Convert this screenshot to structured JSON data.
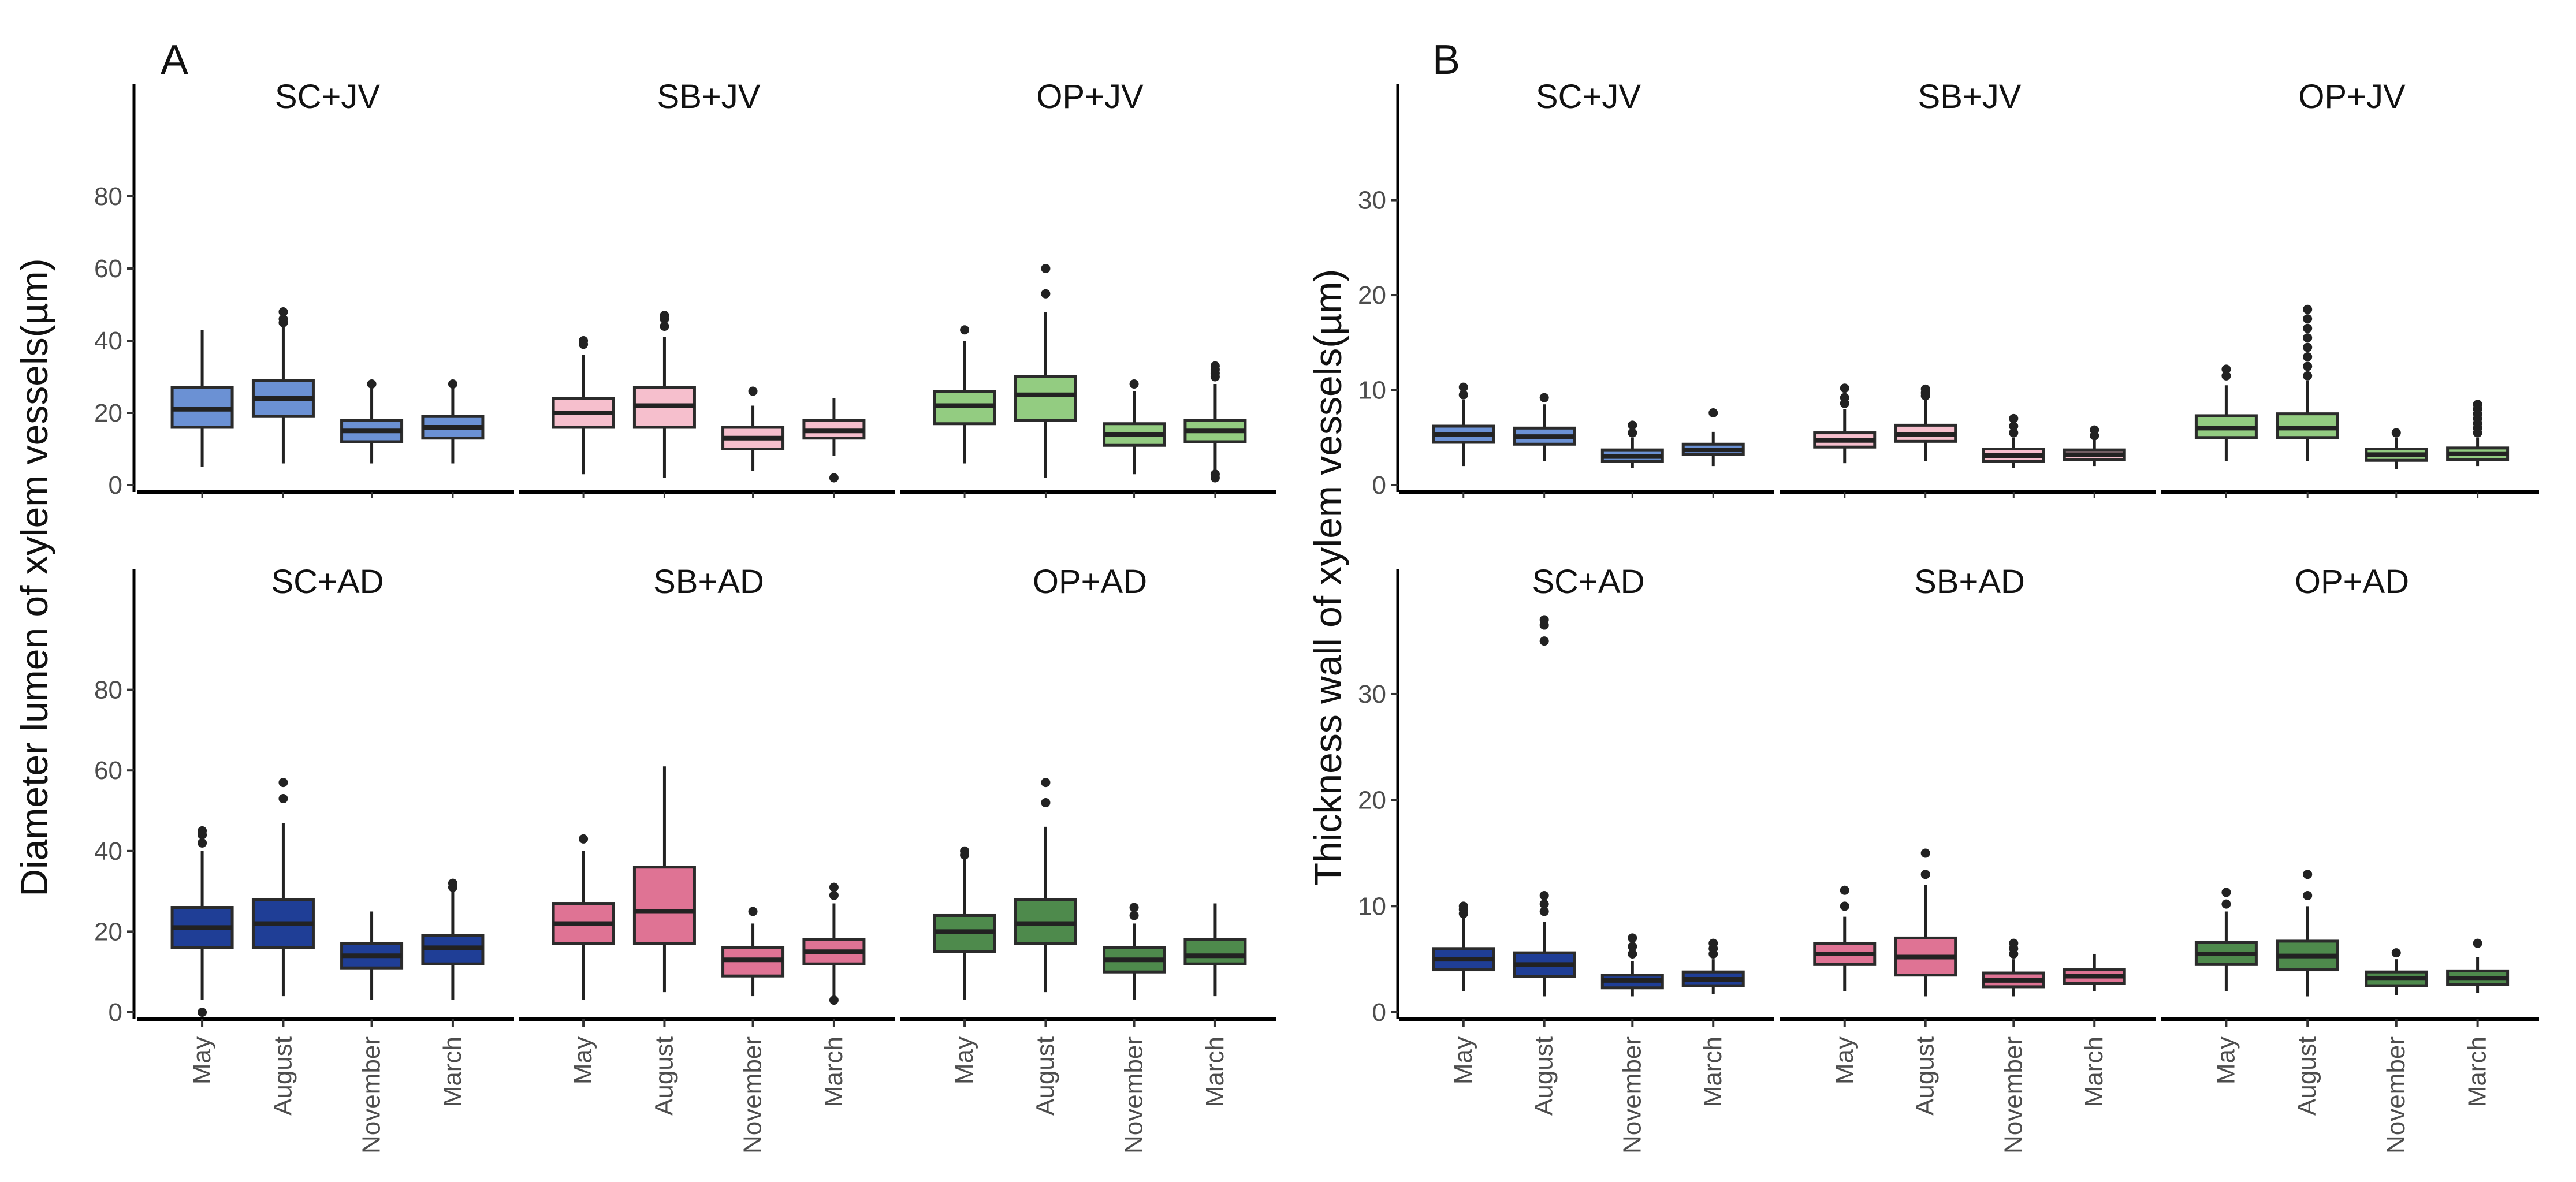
{
  "chart_data": [
    {
      "type": "boxplot",
      "panel_label": "A",
      "ylabel": "Diameter lumen of xylem vessels(µm)",
      "categories": [
        "May",
        "August",
        "November",
        "March"
      ],
      "rows": [
        {
          "ylim": [
            0,
            100
          ],
          "yticks": [
            0,
            20,
            40,
            60,
            80
          ],
          "facets": [
            {
              "title": "SC+JV",
              "color": "#6b91d4",
              "boxes": [
                {
                  "min": 5,
                  "q1": 16,
                  "median": 21,
                  "q3": 27,
                  "max": 43,
                  "outliers": []
                },
                {
                  "min": 6,
                  "q1": 19,
                  "median": 24,
                  "q3": 29,
                  "max": 44,
                  "outliers": [
                    45,
                    46,
                    48
                  ]
                },
                {
                  "min": 6,
                  "q1": 12,
                  "median": 15,
                  "q3": 18,
                  "max": 27,
                  "outliers": [
                    28
                  ]
                },
                {
                  "min": 6,
                  "q1": 13,
                  "median": 16,
                  "q3": 19,
                  "max": 27,
                  "outliers": [
                    28
                  ]
                }
              ]
            },
            {
              "title": "SB+JV",
              "color": "#f6bfcd",
              "boxes": [
                {
                  "min": 3,
                  "q1": 16,
                  "median": 20,
                  "q3": 24,
                  "max": 36,
                  "outliers": [
                    39,
                    40
                  ]
                },
                {
                  "min": 2,
                  "q1": 16,
                  "median": 22,
                  "q3": 27,
                  "max": 41,
                  "outliers": [
                    44,
                    46,
                    47
                  ]
                },
                {
                  "min": 4,
                  "q1": 10,
                  "median": 13,
                  "q3": 16,
                  "max": 22,
                  "outliers": [
                    26
                  ]
                },
                {
                  "min": 8,
                  "q1": 13,
                  "median": 15,
                  "q3": 18,
                  "max": 24,
                  "outliers": [
                    2
                  ]
                }
              ]
            },
            {
              "title": "OP+JV",
              "color": "#93cc81",
              "boxes": [
                {
                  "min": 6,
                  "q1": 17,
                  "median": 22,
                  "q3": 26,
                  "max": 40,
                  "outliers": [
                    43
                  ]
                },
                {
                  "min": 2,
                  "q1": 18,
                  "median": 25,
                  "q3": 30,
                  "max": 48,
                  "outliers": [
                    53,
                    60
                  ]
                },
                {
                  "min": 3,
                  "q1": 11,
                  "median": 14,
                  "q3": 17,
                  "max": 26,
                  "outliers": [
                    28
                  ]
                },
                {
                  "min": 4,
                  "q1": 12,
                  "median": 15,
                  "q3": 18,
                  "max": 28,
                  "outliers": [
                    2,
                    3,
                    30,
                    31,
                    32,
                    33
                  ]
                }
              ]
            }
          ]
        },
        {
          "ylim": [
            0,
            100
          ],
          "yticks": [
            0,
            20,
            40,
            60,
            80
          ],
          "facets": [
            {
              "title": "SC+AD",
              "color": "#1f3e96",
              "boxes": [
                {
                  "min": 3,
                  "q1": 16,
                  "median": 21,
                  "q3": 26,
                  "max": 40,
                  "outliers": [
                    0,
                    42,
                    44,
                    45
                  ]
                },
                {
                  "min": 4,
                  "q1": 16,
                  "median": 22,
                  "q3": 28,
                  "max": 47,
                  "outliers": [
                    53,
                    57
                  ]
                },
                {
                  "min": 3,
                  "q1": 11,
                  "median": 14,
                  "q3": 17,
                  "max": 25,
                  "outliers": []
                },
                {
                  "min": 3,
                  "q1": 12,
                  "median": 16,
                  "q3": 19,
                  "max": 30,
                  "outliers": [
                    31,
                    32
                  ]
                }
              ]
            },
            {
              "title": "SB+AD",
              "color": "#df7394",
              "boxes": [
                {
                  "min": 3,
                  "q1": 17,
                  "median": 22,
                  "q3": 27,
                  "max": 40,
                  "outliers": [
                    43
                  ]
                },
                {
                  "min": 5,
                  "q1": 17,
                  "median": 25,
                  "q3": 36,
                  "max": 61,
                  "outliers": []
                },
                {
                  "min": 4,
                  "q1": 9,
                  "median": 13,
                  "q3": 16,
                  "max": 22,
                  "outliers": [
                    25
                  ]
                },
                {
                  "min": 4,
                  "q1": 12,
                  "median": 15,
                  "q3": 18,
                  "max": 27,
                  "outliers": [
                    3,
                    29,
                    31
                  ]
                }
              ]
            },
            {
              "title": "OP+AD",
              "color": "#4e8a4c",
              "boxes": [
                {
                  "min": 3,
                  "q1": 15,
                  "median": 20,
                  "q3": 24,
                  "max": 38,
                  "outliers": [
                    39,
                    40
                  ]
                },
                {
                  "min": 5,
                  "q1": 17,
                  "median": 22,
                  "q3": 28,
                  "max": 46,
                  "outliers": [
                    52,
                    57
                  ]
                },
                {
                  "min": 3,
                  "q1": 10,
                  "median": 13,
                  "q3": 16,
                  "max": 22,
                  "outliers": [
                    24,
                    26
                  ]
                },
                {
                  "min": 4,
                  "q1": 12,
                  "median": 14,
                  "q3": 18,
                  "max": 27,
                  "outliers": []
                }
              ]
            }
          ]
        }
      ]
    },
    {
      "type": "boxplot",
      "panel_label": "B",
      "ylabel": "Thickness wall of xylem vessels(µm)",
      "categories": [
        "May",
        "August",
        "November",
        "March"
      ],
      "rows": [
        {
          "ylim": [
            0,
            38
          ],
          "yticks": [
            0,
            10,
            20,
            30
          ],
          "facets": [
            {
              "title": "SC+JV",
              "color": "#6b91d4",
              "boxes": [
                {
                  "min": 2,
                  "q1": 4.5,
                  "median": 5.3,
                  "q3": 6.2,
                  "max": 9,
                  "outliers": [
                    9.5,
                    10.3
                  ]
                },
                {
                  "min": 2.5,
                  "q1": 4.3,
                  "median": 5.1,
                  "q3": 6,
                  "max": 8.5,
                  "outliers": [
                    9.2
                  ]
                },
                {
                  "min": 1.8,
                  "q1": 2.5,
                  "median": 3,
                  "q3": 3.7,
                  "max": 5,
                  "outliers": [
                    5.5,
                    6.3
                  ]
                },
                {
                  "min": 2,
                  "q1": 3.2,
                  "median": 3.7,
                  "q3": 4.3,
                  "max": 5.6,
                  "outliers": [
                    7.6
                  ]
                }
              ]
            },
            {
              "title": "SB+JV",
              "color": "#f6bfcd",
              "boxes": [
                {
                  "min": 2.3,
                  "q1": 4,
                  "median": 4.7,
                  "q3": 5.5,
                  "max": 8,
                  "outliers": [
                    8.6,
                    9.2,
                    10.2
                  ]
                },
                {
                  "min": 2.5,
                  "q1": 4.6,
                  "median": 5.3,
                  "q3": 6.3,
                  "max": 9,
                  "outliers": [
                    9.4,
                    9.7,
                    10.1
                  ]
                },
                {
                  "min": 1.8,
                  "q1": 2.5,
                  "median": 3.1,
                  "q3": 3.8,
                  "max": 5,
                  "outliers": [
                    5.5,
                    6.2,
                    7
                  ]
                },
                {
                  "min": 2,
                  "q1": 2.7,
                  "median": 3.2,
                  "q3": 3.7,
                  "max": 4.8,
                  "outliers": [
                    5.2,
                    5.8
                  ]
                }
              ]
            },
            {
              "title": "OP+JV",
              "color": "#93cc81",
              "boxes": [
                {
                  "min": 2.5,
                  "q1": 5,
                  "median": 6,
                  "q3": 7.3,
                  "max": 10.5,
                  "outliers": [
                    11.5,
                    12.2
                  ]
                },
                {
                  "min": 2.5,
                  "q1": 5,
                  "median": 6,
                  "q3": 7.5,
                  "max": 11,
                  "outliers": [
                    11.5,
                    12.5,
                    13.5,
                    14.5,
                    15.5,
                    16.5,
                    17.5,
                    18.5
                  ]
                },
                {
                  "min": 1.7,
                  "q1": 2.6,
                  "median": 3.2,
                  "q3": 3.8,
                  "max": 5,
                  "outliers": [
                    5.5
                  ]
                },
                {
                  "min": 2,
                  "q1": 2.7,
                  "median": 3.3,
                  "q3": 3.9,
                  "max": 5,
                  "outliers": [
                    5.5,
                    6,
                    6.5,
                    7,
                    7.5,
                    8,
                    8.5
                  ]
                }
              ]
            }
          ]
        },
        {
          "ylim": [
            0,
            38
          ],
          "yticks": [
            0,
            10,
            20,
            30
          ],
          "facets": [
            {
              "title": "SC+AD",
              "color": "#1f3e96",
              "boxes": [
                {
                  "min": 2,
                  "q1": 4,
                  "median": 5,
                  "q3": 6,
                  "max": 9,
                  "outliers": [
                    9.3,
                    9.7,
                    10
                  ]
                },
                {
                  "min": 1.5,
                  "q1": 3.4,
                  "median": 4.5,
                  "q3": 5.6,
                  "max": 8.5,
                  "outliers": [
                    9.5,
                    10.2,
                    11,
                    35,
                    36.5,
                    37
                  ]
                },
                {
                  "min": 1.5,
                  "q1": 2.3,
                  "median": 3,
                  "q3": 3.5,
                  "max": 4.8,
                  "outliers": [
                    5.5,
                    6.2,
                    7
                  ]
                },
                {
                  "min": 1.7,
                  "q1": 2.5,
                  "median": 3.1,
                  "q3": 3.8,
                  "max": 5,
                  "outliers": [
                    5.5,
                    6,
                    6.5
                  ]
                }
              ]
            },
            {
              "title": "SB+AD",
              "color": "#df7394",
              "boxes": [
                {
                  "min": 2,
                  "q1": 4.5,
                  "median": 5.5,
                  "q3": 6.5,
                  "max": 9,
                  "outliers": [
                    10,
                    11.5
                  ]
                },
                {
                  "min": 1.5,
                  "q1": 3.5,
                  "median": 5.2,
                  "q3": 7,
                  "max": 12,
                  "outliers": [
                    13,
                    15
                  ]
                },
                {
                  "min": 1.5,
                  "q1": 2.4,
                  "median": 3,
                  "q3": 3.7,
                  "max": 5,
                  "outliers": [
                    5.5,
                    6,
                    6.5
                  ]
                },
                {
                  "min": 2,
                  "q1": 2.7,
                  "median": 3.4,
                  "q3": 4,
                  "max": 5.5,
                  "outliers": []
                }
              ]
            },
            {
              "title": "OP+AD",
              "color": "#4e8a4c",
              "boxes": [
                {
                  "min": 2,
                  "q1": 4.5,
                  "median": 5.5,
                  "q3": 6.6,
                  "max": 9.5,
                  "outliers": [
                    10.2,
                    11.3
                  ]
                },
                {
                  "min": 1.5,
                  "q1": 4,
                  "median": 5.3,
                  "q3": 6.7,
                  "max": 10,
                  "outliers": [
                    11,
                    13
                  ]
                },
                {
                  "min": 1.6,
                  "q1": 2.5,
                  "median": 3.2,
                  "q3": 3.8,
                  "max": 5,
                  "outliers": [
                    5.6
                  ]
                },
                {
                  "min": 1.8,
                  "q1": 2.6,
                  "median": 3.2,
                  "q3": 3.9,
                  "max": 5.2,
                  "outliers": [
                    6.5
                  ]
                }
              ]
            }
          ]
        }
      ]
    }
  ]
}
